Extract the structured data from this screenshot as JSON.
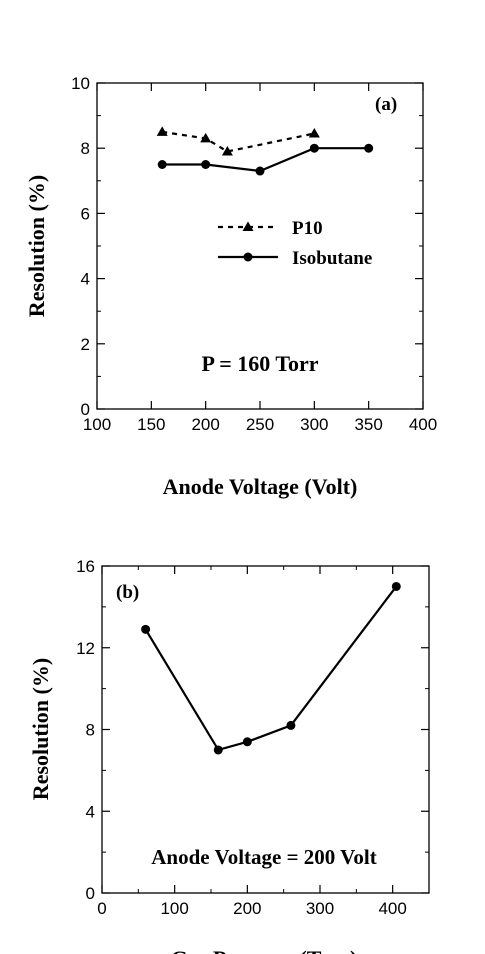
{
  "chart_data": [
    {
      "type": "line",
      "panel_label": "(a)",
      "xlabel": "Anode Voltage (Volt)",
      "ylabel": "Resolution (%)",
      "xlim": [
        100,
        400
      ],
      "ylim": [
        0,
        10
      ],
      "xticks": [
        100,
        150,
        200,
        250,
        300,
        350,
        400
      ],
      "yticks": [
        0,
        2,
        4,
        6,
        8,
        10
      ],
      "annotation": "P = 160 Torr",
      "legend_position": "center-right",
      "series": [
        {
          "name": "P10",
          "style": "dashed",
          "marker": "triangle",
          "x": [
            160,
            200,
            220,
            300
          ],
          "y": [
            8.5,
            8.3,
            7.9,
            8.45
          ]
        },
        {
          "name": "Isobutane",
          "style": "solid",
          "marker": "circle",
          "x": [
            160,
            200,
            250,
            300,
            350
          ],
          "y": [
            7.5,
            7.5,
            7.3,
            8.0,
            8.0
          ]
        }
      ]
    },
    {
      "type": "line",
      "panel_label": "(b)",
      "xlabel": "Gas Pressure (Torr)",
      "ylabel": "Resolution (%)",
      "xlim": [
        0,
        450
      ],
      "ylim": [
        0,
        16
      ],
      "xticks": [
        0,
        100,
        200,
        300,
        400
      ],
      "yticks": [
        0,
        4,
        8,
        12,
        16
      ],
      "annotation": "Anode Voltage = 200 Volt",
      "series": [
        {
          "style": "solid",
          "marker": "circle",
          "x": [
            60,
            160,
            200,
            260,
            405
          ],
          "y": [
            12.9,
            7.0,
            7.4,
            8.2,
            15.0
          ]
        }
      ]
    }
  ]
}
